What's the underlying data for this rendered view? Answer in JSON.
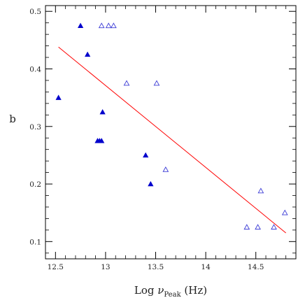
{
  "chart_data": {
    "type": "scatter",
    "title": "",
    "xlabel": {
      "main": "Log ",
      "symbol": "ν",
      "subscript": "Peak",
      "unit": " (Hz)"
    },
    "ylabel": "b",
    "xlim": [
      12.4,
      14.9
    ],
    "ylim": [
      0.07,
      0.51
    ],
    "xticks": [
      12.5,
      13,
      13.5,
      14,
      14.5
    ],
    "xtick_labels": [
      "12.5",
      "13",
      "13.5",
      "14",
      "14.5"
    ],
    "yticks": [
      0.1,
      0.2,
      0.3,
      0.4,
      0.5
    ],
    "ytick_labels": [
      "0.1",
      "0.2",
      "0.3",
      "0.4",
      "0.5"
    ],
    "grid": false,
    "series": [
      {
        "marker": "filled-triangle",
        "color": "#0000cc",
        "points": [
          [
            12.75,
            0.475
          ],
          [
            12.82,
            0.425
          ],
          [
            12.53,
            0.35
          ],
          [
            12.97,
            0.325
          ],
          [
            12.92,
            0.275
          ],
          [
            12.94,
            0.275
          ],
          [
            12.96,
            0.275
          ],
          [
            13.4,
            0.25
          ],
          [
            13.45,
            0.2
          ]
        ]
      },
      {
        "marker": "open-triangle",
        "color": "#3b3bd6",
        "points": [
          [
            12.96,
            0.475
          ],
          [
            13.03,
            0.475
          ],
          [
            13.08,
            0.475
          ],
          [
            13.21,
            0.375
          ],
          [
            13.51,
            0.375
          ],
          [
            13.6,
            0.225
          ],
          [
            14.41,
            0.125
          ],
          [
            14.52,
            0.125
          ],
          [
            14.68,
            0.125
          ],
          [
            14.55,
            0.188
          ],
          [
            14.79,
            0.15
          ]
        ]
      }
    ],
    "fit_line": {
      "color": "#ff0000",
      "x": [
        12.53,
        14.8
      ],
      "y": [
        0.438,
        0.115
      ]
    }
  }
}
